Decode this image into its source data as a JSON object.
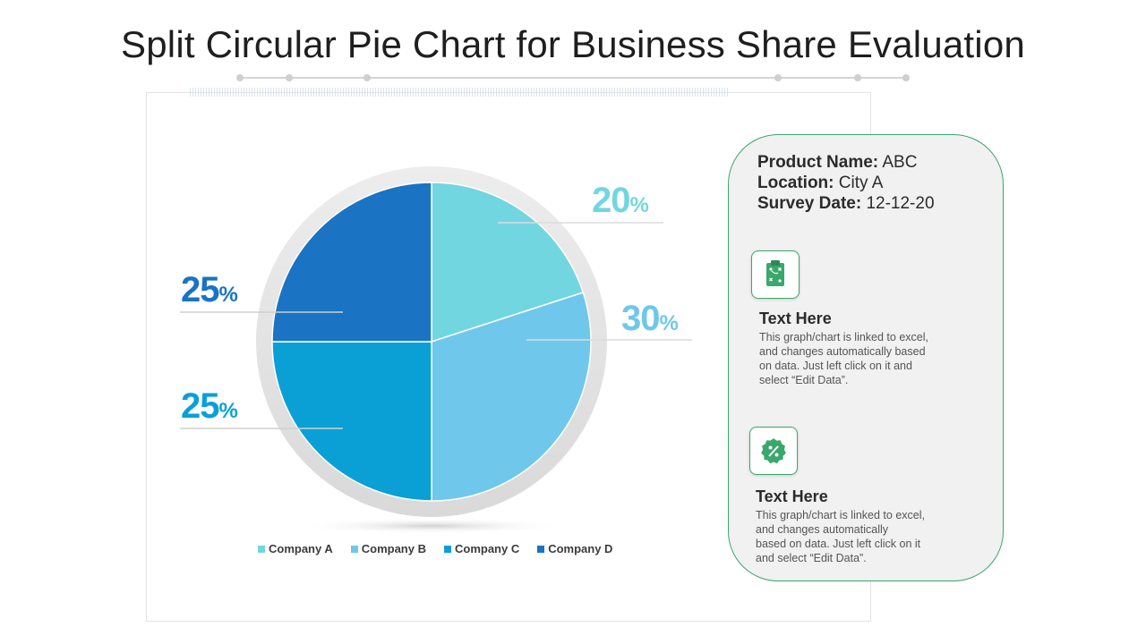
{
  "title": "Split Circular Pie Chart for Business Share Evaluation",
  "colors": {
    "accent_green": "#3aa76d",
    "company_a": "#72d6e1",
    "company_b": "#70c7ec",
    "company_c": "#0aa0d6",
    "company_d": "#1a73c3"
  },
  "chart_data": {
    "type": "pie",
    "categories": [
      "Company A",
      "Company B",
      "Company C",
      "Company D"
    ],
    "values": [
      20,
      30,
      25,
      25
    ],
    "labels": [
      {
        "value": "20",
        "unit": "%"
      },
      {
        "value": "30",
        "unit": "%"
      },
      {
        "value": "25",
        "unit": "%"
      },
      {
        "value": "25",
        "unit": "%"
      }
    ],
    "legend": "bottom"
  },
  "info": {
    "product_label": "Product Name:",
    "product_value": " ABC",
    "location_label": "Location:",
    "location_value": " City A",
    "date_label": "Survey Date:",
    "date_value": " 12-12-20",
    "items": [
      {
        "icon": "clipboard-strategy-icon",
        "heading": "Text Here",
        "lines": [
          "This graph/chart is linked to excel,",
          "and changes  automatically based",
          "on data. Just left click on it and",
          "select “Edit Data”."
        ]
      },
      {
        "icon": "percent-badge-icon",
        "heading": "Text Here",
        "lines": [
          "This graph/chart is linked to excel,",
          "and changes  automatically",
          "based on data. Just left click on it",
          "and select  “Edit Data”."
        ]
      }
    ]
  }
}
